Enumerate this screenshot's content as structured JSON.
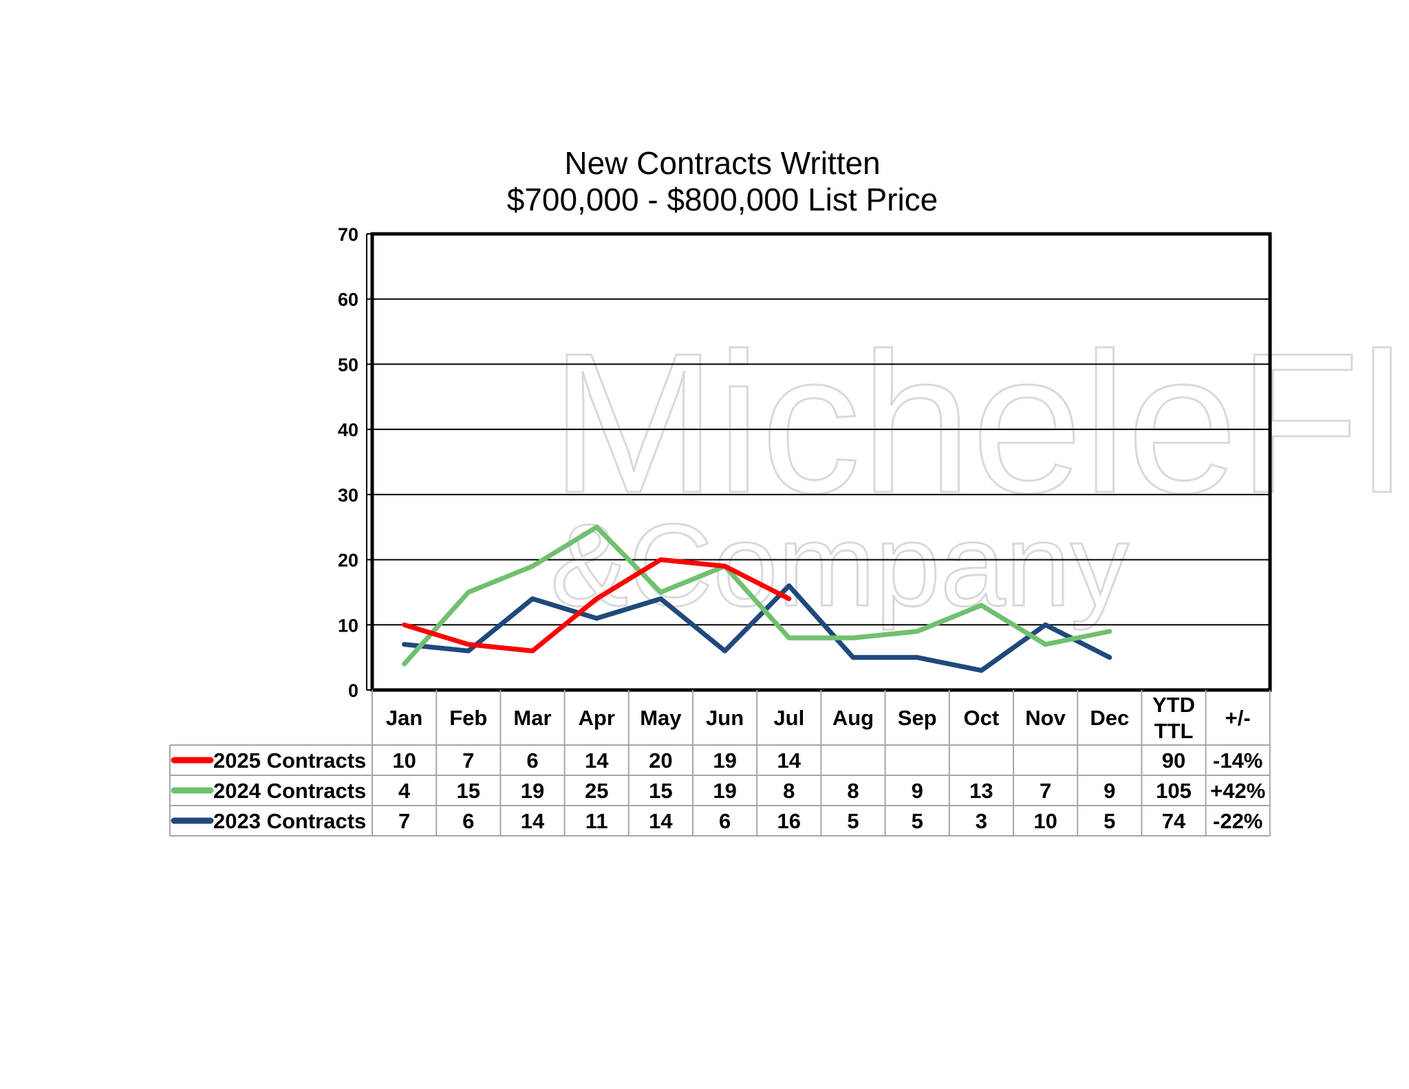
{
  "chart_data": {
    "type": "line",
    "title": "New Contracts Written",
    "subtitle": "$700,000 - $800,000 List Price",
    "categories": [
      "Jan",
      "Feb",
      "Mar",
      "Apr",
      "May",
      "Jun",
      "Jul",
      "Aug",
      "Sep",
      "Oct",
      "Nov",
      "Dec"
    ],
    "ylim": [
      0,
      70
    ],
    "yticks": [
      0,
      10,
      20,
      30,
      40,
      50,
      60,
      70
    ],
    "grid": true,
    "series": [
      {
        "name": "2025 Contracts",
        "color": "#ff0000",
        "values": [
          10,
          7,
          6,
          14,
          20,
          19,
          14,
          null,
          null,
          null,
          null,
          null
        ],
        "ytd": "90",
        "change": "-14%"
      },
      {
        "name": "2024 Contracts",
        "color": "#70c070",
        "values": [
          4,
          15,
          19,
          25,
          15,
          19,
          8,
          8,
          9,
          13,
          7,
          9
        ],
        "ytd": "105",
        "change": "+42%"
      },
      {
        "name": "2023 Contracts",
        "color": "#1f497d",
        "values": [
          7,
          6,
          14,
          11,
          14,
          6,
          16,
          5,
          5,
          3,
          10,
          5
        ],
        "ytd": "74",
        "change": "-22%"
      }
    ],
    "table_headers": {
      "ytd": [
        "YTD",
        "TTL"
      ],
      "change": "+/-"
    }
  },
  "watermark": {
    "line1": "MicheleFlory",
    "line2": "&Company"
  }
}
